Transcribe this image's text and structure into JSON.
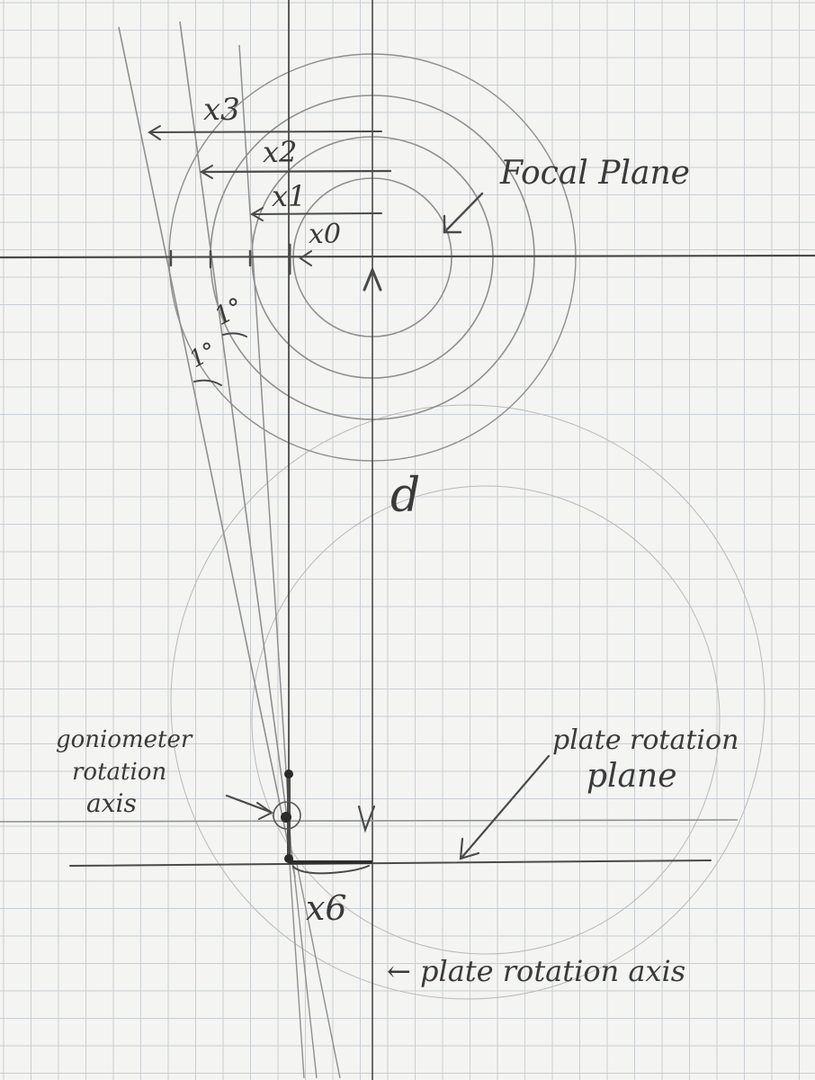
{
  "labels": {
    "x3": "x3",
    "x2": "x2",
    "x1": "x1",
    "x0": "x0",
    "x6": "x6",
    "angle_upper": "1°",
    "angle_lower": "1°",
    "focal_plane": "Focal Plane",
    "d": "d",
    "goniometer_line1": "goniometer",
    "goniometer_line2": "rotation",
    "goniometer_line3": "axis",
    "plate_plane_line1": "plate rotation",
    "plate_plane_line2": "plane",
    "plate_axis": "← plate rotation axis"
  },
  "colors": {
    "paper": "#f4f4f2",
    "grid": "#c9ced3",
    "pencil": "#4a4a4a"
  }
}
